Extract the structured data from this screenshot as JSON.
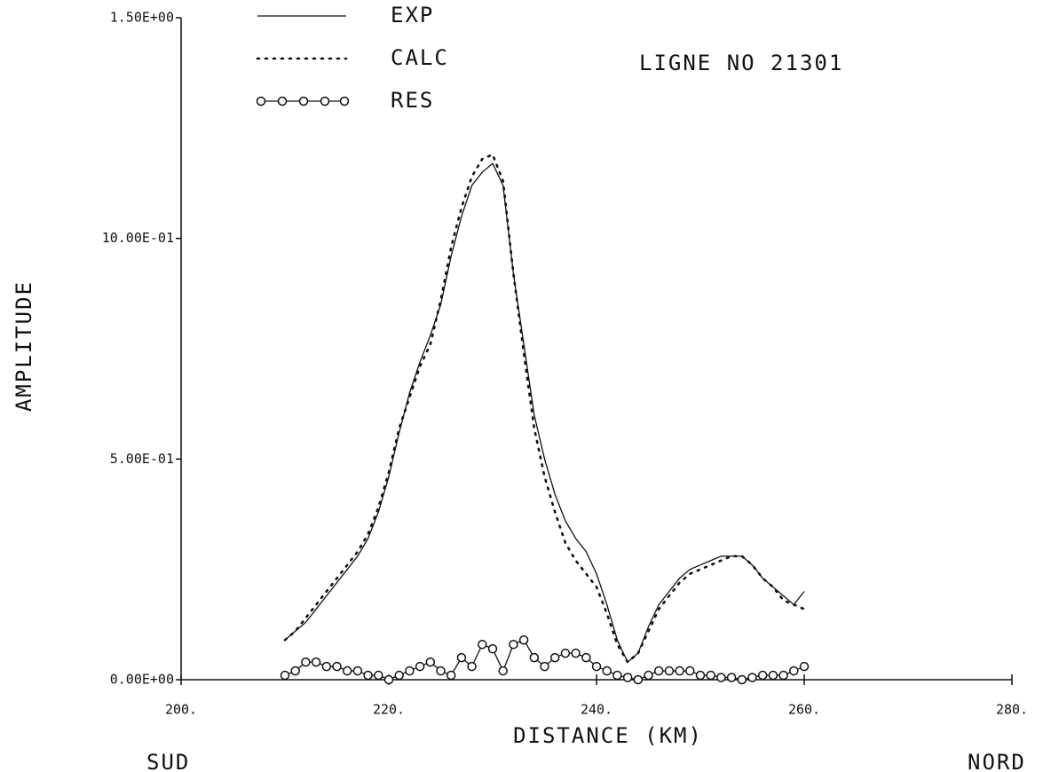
{
  "chart_data": {
    "type": "line",
    "title": "LIGNE NO 21301",
    "xlabel": "DISTANCE (KM)",
    "ylabel": "AMPLITUDE",
    "left_label": "SUD",
    "right_label": "NORD",
    "xlim": [
      200,
      280
    ],
    "ylim": [
      0,
      1.5
    ],
    "xticks": [
      {
        "value": 200,
        "label": "200."
      },
      {
        "value": 220,
        "label": "220."
      },
      {
        "value": 240,
        "label": "240."
      },
      {
        "value": 260,
        "label": "260."
      },
      {
        "value": 280,
        "label": "280."
      }
    ],
    "yticks": [
      {
        "value": 0,
        "label": "0.00E+00"
      },
      {
        "value": 0.5,
        "label": "5.00E-01"
      },
      {
        "value": 1.0,
        "label": "10.00E-01"
      },
      {
        "value": 1.5,
        "label": "1.50E+00"
      }
    ],
    "x": [
      210,
      211,
      212,
      213,
      214,
      215,
      216,
      217,
      218,
      219,
      220,
      221,
      222,
      223,
      224,
      225,
      226,
      227,
      228,
      229,
      230,
      231,
      232,
      233,
      234,
      235,
      236,
      237,
      238,
      239,
      240,
      241,
      242,
      243,
      244,
      245,
      246,
      247,
      248,
      249,
      250,
      251,
      252,
      253,
      254,
      255,
      256,
      257,
      258,
      259,
      260
    ],
    "series": [
      {
        "name": "EXP",
        "style": "solid",
        "color": "#111111",
        "values": [
          0.09,
          0.11,
          0.13,
          0.16,
          0.19,
          0.22,
          0.25,
          0.28,
          0.32,
          0.38,
          0.46,
          0.56,
          0.65,
          0.72,
          0.78,
          0.85,
          0.96,
          1.05,
          1.12,
          1.15,
          1.17,
          1.12,
          0.92,
          0.76,
          0.6,
          0.5,
          0.42,
          0.36,
          0.32,
          0.29,
          0.24,
          0.17,
          0.09,
          0.04,
          0.06,
          0.12,
          0.17,
          0.2,
          0.23,
          0.25,
          0.26,
          0.27,
          0.28,
          0.28,
          0.28,
          0.26,
          0.23,
          0.21,
          0.19,
          0.17,
          0.2
        ]
      },
      {
        "name": "CALC",
        "style": "dotted",
        "color": "#111111",
        "values": [
          0.09,
          0.11,
          0.14,
          0.17,
          0.2,
          0.23,
          0.26,
          0.29,
          0.33,
          0.39,
          0.47,
          0.57,
          0.64,
          0.71,
          0.76,
          0.86,
          0.98,
          1.07,
          1.14,
          1.18,
          1.19,
          1.13,
          0.92,
          0.74,
          0.57,
          0.46,
          0.38,
          0.31,
          0.27,
          0.24,
          0.21,
          0.15,
          0.08,
          0.04,
          0.06,
          0.11,
          0.16,
          0.19,
          0.22,
          0.24,
          0.25,
          0.26,
          0.27,
          0.28,
          0.28,
          0.26,
          0.23,
          0.21,
          0.18,
          0.17,
          0.16
        ]
      },
      {
        "name": "RES",
        "style": "markers",
        "color": "#111111",
        "values": [
          0.01,
          0.02,
          0.04,
          0.04,
          0.03,
          0.03,
          0.02,
          0.02,
          0.01,
          0.01,
          0.0,
          0.01,
          0.02,
          0.03,
          0.04,
          0.02,
          0.01,
          0.05,
          0.03,
          0.08,
          0.07,
          0.02,
          0.08,
          0.09,
          0.05,
          0.03,
          0.05,
          0.06,
          0.06,
          0.05,
          0.03,
          0.02,
          0.01,
          0.005,
          0.0,
          0.01,
          0.02,
          0.02,
          0.02,
          0.02,
          0.01,
          0.01,
          0.005,
          0.005,
          0.0,
          0.005,
          0.01,
          0.01,
          0.01,
          0.02,
          0.03
        ]
      }
    ]
  }
}
